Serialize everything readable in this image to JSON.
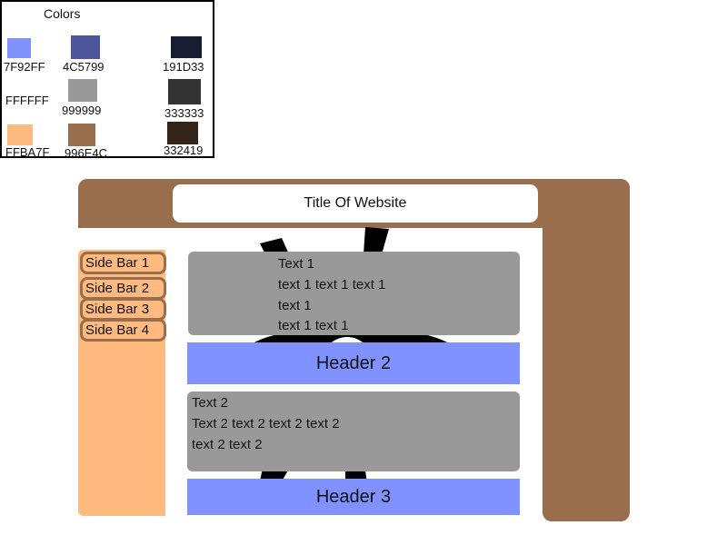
{
  "palette": {
    "title": "Colors",
    "colors": [
      {
        "hex": "7F92FF",
        "color": "#7F92FF"
      },
      {
        "hex": "4C5799",
        "color": "#4C5799"
      },
      {
        "hex": "191D33",
        "color": "#191D33"
      },
      {
        "hex": "FFFFFF",
        "color": "#FFFFFF"
      },
      {
        "hex": "999999",
        "color": "#999999"
      },
      {
        "hex": "333333",
        "color": "#333333"
      },
      {
        "hex": "FFBA7F",
        "color": "#FFBA7F"
      },
      {
        "hex": "996E4C",
        "color": "#996E4C"
      },
      {
        "hex": "332419",
        "color": "#332419"
      }
    ]
  },
  "site": {
    "title": "Title Of Website",
    "sidebar": {
      "items": [
        {
          "label": "Side Bar 1"
        },
        {
          "label": "Side Bar 2"
        },
        {
          "label": "Side Bar 3"
        },
        {
          "label": "Side Bar 4"
        }
      ]
    },
    "section1": {
      "lines": [
        "Text 1",
        "text 1 text 1 text 1",
        "text 1",
        "text 1 text 1"
      ]
    },
    "header2": "Header 2",
    "section2": {
      "lines": [
        "Text 2",
        "Text 2 text 2 text 2 text 2",
        "text 2 text 2"
      ]
    },
    "header3": "Header 3"
  }
}
